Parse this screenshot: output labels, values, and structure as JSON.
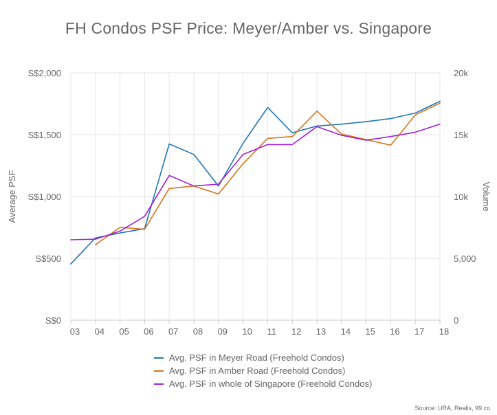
{
  "title": "FH Condos PSF Price: Meyer/Amber vs. Singapore",
  "source": "Source: URA, Realis, 99.co",
  "chart_data": {
    "type": "line",
    "x": [
      "03",
      "04",
      "05",
      "06",
      "07",
      "08",
      "09",
      "10",
      "11",
      "12",
      "13",
      "14",
      "15",
      "16",
      "17",
      "18"
    ],
    "ylabel": "Average PSF",
    "y2label": "Volume",
    "ylim": [
      0,
      2000
    ],
    "y2lim": [
      0,
      20000
    ],
    "y_ticks": [
      {
        "value": 0,
        "label": "S$0"
      },
      {
        "value": 500,
        "label": "S$500"
      },
      {
        "value": 1000,
        "label": "S$1,000"
      },
      {
        "value": 1500,
        "label": "S$1,500"
      },
      {
        "value": 2000,
        "label": "S$2,000"
      }
    ],
    "y2_ticks": [
      {
        "value": 0,
        "label": "0"
      },
      {
        "value": 5000,
        "label": "5,000"
      },
      {
        "value": 10000,
        "label": "10k"
      },
      {
        "value": 15000,
        "label": "15k"
      },
      {
        "value": 20000,
        "label": "20k"
      }
    ],
    "grid": true,
    "legend_position": "bottom",
    "series": [
      {
        "name": "Avg. PSF in Meyer Road (Freehold Condos)",
        "color": "#1f77b4",
        "values": [
          455,
          665,
          705,
          740,
          1425,
          1340,
          1085,
          1430,
          1720,
          1515,
          1570,
          1585,
          1605,
          1630,
          1675,
          1770
        ]
      },
      {
        "name": "Avg. PSF in Amber Road (Freehold Condos)",
        "color": "#d9731b",
        "values": [
          null,
          610,
          750,
          735,
          1065,
          1085,
          1020,
          1265,
          1470,
          1485,
          1690,
          1505,
          1460,
          1415,
          1660,
          1755
        ]
      },
      {
        "name": "Avg. PSF in whole of Singapore (Freehold Condos)",
        "color": "#a020d6",
        "values": [
          650,
          655,
          720,
          840,
          1170,
          1085,
          1100,
          1340,
          1420,
          1420,
          1565,
          1495,
          1455,
          1485,
          1520,
          1585
        ]
      }
    ]
  }
}
